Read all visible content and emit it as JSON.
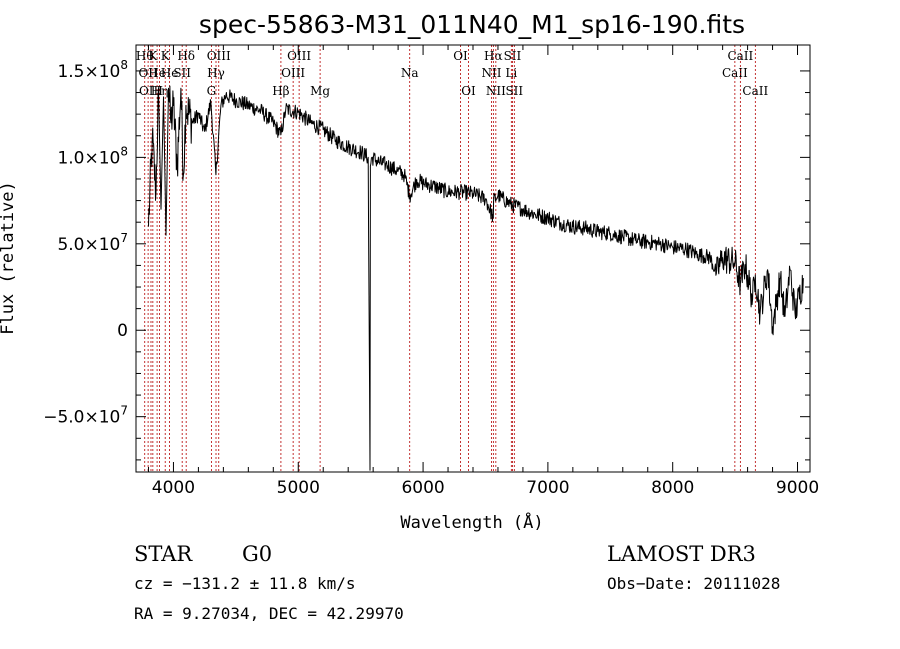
{
  "chart_data": {
    "type": "line",
    "title": "spec-55863-M31_011N40_M1_sp16-190.fits",
    "xlabel": "Wavelength (Å)",
    "ylabel": "Flux (relative)",
    "xlim": [
      3700,
      9100
    ],
    "ylim": [
      -82000000,
      165000000
    ],
    "xticks": [
      {
        "value": 4000,
        "label": "4000"
      },
      {
        "value": 5000,
        "label": "5000"
      },
      {
        "value": 6000,
        "label": "6000"
      },
      {
        "value": 7000,
        "label": "7000"
      },
      {
        "value": 8000,
        "label": "8000"
      },
      {
        "value": 9000,
        "label": "9000"
      }
    ],
    "yticks": [
      {
        "value": 150000000,
        "mant": "1.5×10",
        "exp": "8"
      },
      {
        "value": 100000000,
        "mant": "1.0×10",
        "exp": "8"
      },
      {
        "value": 50000000,
        "mant": "5.0×10",
        "exp": "7"
      },
      {
        "value": 0,
        "mant": "0",
        "exp": ""
      },
      {
        "value": -50000000,
        "mant": "−5.0×10",
        "exp": "7"
      }
    ],
    "series": [
      {
        "name": "flux",
        "x": [
          3800,
          3830,
          3860,
          3880,
          3900,
          3920,
          3940,
          3960,
          3980,
          4000,
          4030,
          4060,
          4080,
          4100,
          4150,
          4200,
          4250,
          4300,
          4340,
          4380,
          4420,
          4500,
          4600,
          4700,
          4800,
          4860,
          4900,
          5000,
          5100,
          5200,
          5300,
          5400,
          5500,
          5560,
          5575,
          5578,
          5590,
          5650,
          5700,
          5800,
          5850,
          5893,
          5950,
          6000,
          6100,
          6200,
          6300,
          6400,
          6500,
          6563,
          6565,
          6600,
          6700,
          6800,
          6900,
          7000,
          7100,
          7200,
          7300,
          7400,
          7500,
          7600,
          7700,
          7800,
          7900,
          8000,
          8100,
          8200,
          8300,
          8350,
          8400,
          8500,
          8542,
          8580,
          8640,
          8662,
          8700,
          8760,
          8800,
          8860,
          8900,
          8940,
          8980,
          9050
        ],
        "values": [
          60000000,
          110000000,
          80000000,
          140000000,
          70000000,
          135000000,
          55000000,
          140000000,
          120000000,
          130000000,
          95000000,
          140000000,
          90000000,
          130000000,
          120000000,
          125000000,
          115000000,
          132000000,
          90000000,
          130000000,
          136000000,
          133000000,
          130000000,
          127000000,
          120000000,
          113000000,
          128000000,
          126000000,
          120000000,
          116000000,
          110000000,
          106000000,
          103000000,
          100000000,
          -81000000,
          95000000,
          100000000,
          97000000,
          96000000,
          92000000,
          90000000,
          78000000,
          87000000,
          85000000,
          83000000,
          80000000,
          80000000,
          79000000,
          76000000,
          65000000,
          75000000,
          78000000,
          73000000,
          70000000,
          67000000,
          65000000,
          62000000,
          60000000,
          59000000,
          57000000,
          56000000,
          54000000,
          52000000,
          51000000,
          50000000,
          48000000,
          47000000,
          44000000,
          42000000,
          33000000,
          42000000,
          39000000,
          27000000,
          38000000,
          18000000,
          32000000,
          10000000,
          35000000,
          2000000,
          30000000,
          8000000,
          35000000,
          10000000,
          30000000
        ]
      }
    ],
    "lines": [
      {
        "w": 3770,
        "label": "Hθ",
        "row": 0
      },
      {
        "w": 3797,
        "label": "OII",
        "row": 1
      },
      {
        "w": 3820,
        "label": "OIII",
        "row": 2
      },
      {
        "w": 3835,
        "label": "K",
        "row": 0
      },
      {
        "w": 3869,
        "label": "He",
        "row": 1
      },
      {
        "w": 3889,
        "label": "Hη",
        "row": 2
      },
      {
        "w": 3934,
        "label": "K",
        "row": 0
      },
      {
        "w": 3969,
        "label": "He",
        "row": 1
      },
      {
        "w": 4070,
        "label": "SII",
        "row": 1
      },
      {
        "w": 4102,
        "label": "Hδ",
        "row": 0
      },
      {
        "w": 4304,
        "label": "G",
        "row": 2
      },
      {
        "w": 4341,
        "label": "Hγ",
        "row": 1
      },
      {
        "w": 4363,
        "label": "OIII",
        "row": 0
      },
      {
        "w": 4861,
        "label": "Hβ",
        "row": 2
      },
      {
        "w": 4959,
        "label": "OIII",
        "row": 1
      },
      {
        "w": 5007,
        "label": "OIII",
        "row": 0
      },
      {
        "w": 5175,
        "label": "Mg",
        "row": 2
      },
      {
        "w": 5893,
        "label": "Na",
        "row": 1
      },
      {
        "w": 6300,
        "label": "OI",
        "row": 0
      },
      {
        "w": 6364,
        "label": "OI",
        "row": 2
      },
      {
        "w": 6548,
        "label": "NII",
        "row": 1
      },
      {
        "w": 6563,
        "label": "Hα",
        "row": 0
      },
      {
        "w": 6583,
        "label": "NII",
        "row": 2
      },
      {
        "w": 6707,
        "label": "Li",
        "row": 1
      },
      {
        "w": 6716,
        "label": "SII",
        "row": 0
      },
      {
        "w": 6731,
        "label": "SII",
        "row": 2
      },
      {
        "w": 8498,
        "label": "CaII",
        "row": 1
      },
      {
        "w": 8542,
        "label": "CaII",
        "row": 0
      },
      {
        "w": 8662,
        "label": "CaII",
        "row": 2
      }
    ]
  },
  "info": {
    "class_label": "STAR",
    "subclass": "G0",
    "survey": "LAMOST DR3",
    "cz": "cz = −131.2 ± 11.8 km/s",
    "obs_date": "Obs−Date: 20111028",
    "radec": "RA =   9.27034, DEC =  42.29970"
  },
  "colors": {
    "spectrum": "#000000",
    "line_marker": "#b40000"
  }
}
